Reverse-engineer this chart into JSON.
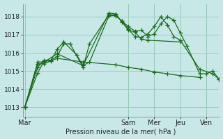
{
  "xlabel": "Pression niveau de la mer( hPa )",
  "bg_color": "#c8e8e8",
  "grid_color": "#99ccbb",
  "line_color": "#1a6b1a",
  "marker": "+",
  "markersize": 4,
  "linewidth": 0.9,
  "yticks": [
    1013,
    1014,
    1015,
    1016,
    1017,
    1018
  ],
  "ylim": [
    1012.5,
    1018.7
  ],
  "xtick_labels": [
    "Mar",
    "Sam",
    "Mer",
    "Jeu",
    "Ven"
  ],
  "xtick_positions": [
    0,
    16,
    20,
    24,
    28
  ],
  "xlim": [
    -0.3,
    30
  ],
  "vlines": [
    0,
    16,
    20,
    24,
    28
  ],
  "series": [
    [
      1013.0,
      1014.9,
      1015.55,
      1015.55,
      1016.2,
      1016.6,
      1015.9,
      1015.3,
      1015.5,
      1018.05,
      1018.05,
      1017.75,
      1017.45,
      1017.2,
      1017.25,
      1016.9,
      1017.05,
      1017.6,
      1018.0,
      1017.8,
      1017.1,
      1016.4,
      1014.85,
      1014.85,
      1015.0,
      1014.55
    ],
    [
      1013.0,
      1015.2,
      1015.6,
      1015.6,
      1015.8,
      1016.5,
      1016.5,
      1015.2,
      1016.5,
      1018.1,
      1018.1,
      1017.75,
      1017.3,
      1016.9,
      1016.85,
      1017.05,
      1017.45,
      1018.0,
      1017.55,
      1016.9,
      1016.7,
      1015.1,
      1014.85,
      1014.55
    ],
    [
      1013.0,
      1015.5,
      1015.5,
      1015.95,
      1015.3,
      1018.2,
      1018.15,
      1017.7,
      1017.25,
      1017.15,
      1016.75,
      1016.7,
      1016.6
    ],
    [
      1013.0,
      1015.4,
      1015.4,
      1015.7,
      1015.5,
      1015.35,
      1015.2,
      1015.1,
      1014.95,
      1014.85,
      1014.75,
      1014.65
    ]
  ],
  "series_x": [
    [
      0,
      2,
      3,
      4,
      5,
      6,
      8,
      9,
      10,
      13,
      14,
      15,
      16,
      17,
      18,
      19,
      20,
      21,
      22,
      23,
      24,
      25,
      27,
      28,
      29,
      30
    ],
    [
      0,
      2,
      3,
      4,
      5,
      6,
      7,
      9,
      10,
      13,
      14,
      15,
      16,
      17,
      18,
      19,
      20,
      21,
      22,
      23,
      24,
      27,
      29,
      30
    ],
    [
      0,
      2,
      3,
      5,
      9,
      13,
      14,
      15,
      16,
      17,
      18,
      19,
      24
    ],
    [
      0,
      2,
      3,
      5,
      9,
      14,
      16,
      18,
      20,
      22,
      24,
      27
    ]
  ]
}
